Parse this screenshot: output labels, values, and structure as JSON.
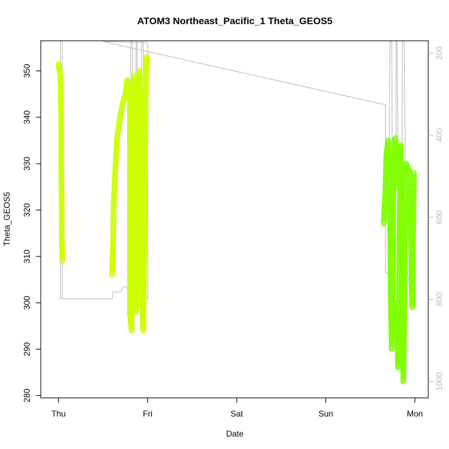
{
  "chart_data": {
    "type": "scatter",
    "title": "ATOM3 Northeast_Pacific_1 Theta_GEOS5",
    "xlabel": "Date",
    "ylabel": "Theta_GEOS5",
    "x_tick_labels": [
      "Thu",
      "Fri",
      "Sat",
      "Sun",
      "Mon"
    ],
    "x_tick_values": [
      0,
      1,
      2,
      3,
      4
    ],
    "xlim": [
      -0.2,
      4.15
    ],
    "ylim": [
      279.5,
      356.5
    ],
    "y_ticks": [
      280,
      290,
      300,
      310,
      320,
      330,
      340,
      350
    ],
    "right_axis": {
      "ticks": [
        200,
        400,
        600,
        800,
        1000
      ],
      "range": [
        170,
        1040
      ],
      "reversed": true,
      "color": "#bbbbbb"
    },
    "grid": false,
    "colors": {
      "early": "#ccff00",
      "late": "#80ff00",
      "pressure_line": "#bbbbbb"
    },
    "series": [
      {
        "kind": "theta",
        "color": "#ccff00",
        "segments": [
          [
            [
              0.0,
              351.5
            ],
            [
              0.02,
              349
            ],
            [
              0.025,
              345
            ],
            [
              0.03,
              338
            ],
            [
              0.03,
              330
            ],
            [
              0.035,
              322
            ],
            [
              0.035,
              315
            ],
            [
              0.04,
              311
            ],
            [
              0.04,
              309
            ]
          ],
          [
            [
              0.6,
              306
            ],
            [
              0.61,
              312
            ],
            [
              0.62,
              322
            ],
            [
              0.64,
              330
            ],
            [
              0.66,
              336
            ],
            [
              0.69,
              340
            ],
            [
              0.72,
              343
            ],
            [
              0.75,
              345
            ],
            [
              0.76,
              346.5
            ],
            [
              0.77,
              348
            ],
            [
              0.78,
              347
            ]
          ],
          [
            [
              0.8,
              347
            ],
            [
              0.8,
              330
            ],
            [
              0.8,
              315
            ],
            [
              0.8,
              305
            ],
            [
              0.8,
              298
            ],
            [
              0.82,
              294
            ],
            [
              0.82,
              310
            ],
            [
              0.83,
              330
            ],
            [
              0.84,
              345
            ],
            [
              0.85,
              349
            ]
          ],
          [
            [
              0.86,
              348
            ],
            [
              0.86,
              325
            ],
            [
              0.87,
              305
            ],
            [
              0.87,
              298
            ],
            [
              0.88,
              308
            ],
            [
              0.89,
              330
            ],
            [
              0.9,
              345
            ],
            [
              0.91,
              350
            ],
            [
              0.92,
              340
            ],
            [
              0.93,
              320
            ],
            [
              0.94,
              300
            ],
            [
              0.95,
              294
            ],
            [
              0.96,
              310
            ],
            [
              0.97,
              330
            ],
            [
              0.98,
              348
            ],
            [
              0.99,
              353
            ],
            [
              1.0,
              352
            ]
          ]
        ]
      },
      {
        "kind": "theta",
        "color": "#80ff00",
        "segments": [
          [
            [
              3.65,
              317
            ],
            [
              3.67,
              325
            ],
            [
              3.68,
              332
            ],
            [
              3.7,
              335
            ],
            [
              3.72,
              320
            ],
            [
              3.73,
              300
            ],
            [
              3.74,
              290
            ],
            [
              3.75,
              310
            ],
            [
              3.76,
              330
            ],
            [
              3.78,
              335.5
            ],
            [
              3.79,
              325
            ]
          ],
          [
            [
              3.8,
              300
            ],
            [
              3.81,
              286
            ],
            [
              3.82,
              300
            ],
            [
              3.83,
              320
            ],
            [
              3.84,
              334
            ],
            [
              3.85,
              325
            ],
            [
              3.86,
              300
            ],
            [
              3.87,
              283
            ],
            [
              3.88,
              300
            ],
            [
              3.89,
              320
            ],
            [
              3.9,
              330
            ],
            [
              3.92,
              329
            ],
            [
              3.94,
              328.5
            ],
            [
              3.96,
              310
            ],
            [
              3.97,
              299
            ],
            [
              3.98,
              315
            ],
            [
              3.99,
              328
            ]
          ]
        ]
      },
      {
        "kind": "pressure",
        "color": "#bbbbbb",
        "points": [
          [
            0.0,
            799
          ],
          [
            0.02,
            799
          ],
          [
            0.02,
            172
          ],
          [
            0.04,
            172
          ],
          [
            0.04,
            799
          ],
          [
            0.6,
            799
          ],
          [
            0.61,
            782
          ],
          [
            0.7,
            782
          ],
          [
            0.73,
            770
          ],
          [
            0.75,
            770
          ],
          [
            0.79,
            770
          ],
          [
            0.8,
            770
          ],
          [
            0.81,
            172
          ],
          [
            0.83,
            172
          ],
          [
            0.84,
            800
          ],
          [
            0.86,
            800
          ],
          [
            0.87,
            172
          ],
          [
            0.88,
            172
          ],
          [
            0.9,
            800
          ],
          [
            0.92,
            800
          ],
          [
            0.93,
            172
          ],
          [
            0.95,
            172
          ],
          [
            0.97,
            800
          ],
          [
            1.0,
            800
          ],
          [
            1.0,
            175
          ],
          [
            0.5,
            172
          ],
          [
            3.65,
            325
          ],
          [
            3.67,
            325
          ],
          [
            3.67,
            735
          ],
          [
            3.7,
            735
          ],
          [
            3.72,
            172
          ],
          [
            3.74,
            172
          ],
          [
            3.75,
            735
          ],
          [
            3.78,
            735
          ],
          [
            3.79,
            172
          ],
          [
            3.8,
            172
          ],
          [
            3.82,
            735
          ],
          [
            3.85,
            735
          ],
          [
            3.86,
            172
          ],
          [
            3.88,
            172
          ],
          [
            3.9,
            735
          ],
          [
            3.92,
            735
          ],
          [
            3.94,
            775
          ],
          [
            3.96,
            775
          ],
          [
            3.97,
            775
          ],
          [
            4.0,
            775
          ]
        ]
      }
    ]
  }
}
